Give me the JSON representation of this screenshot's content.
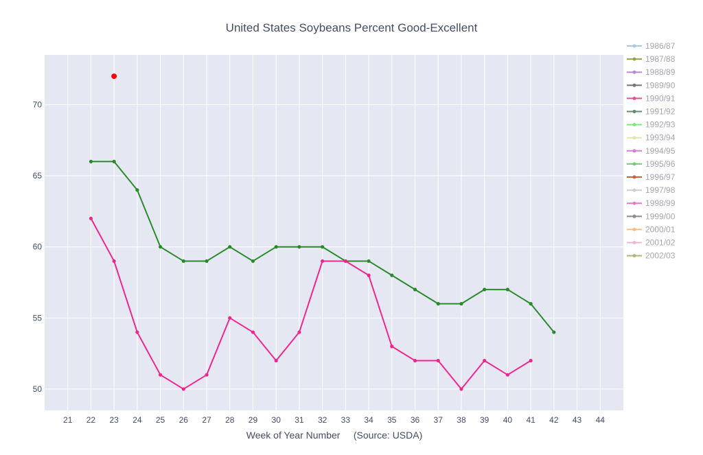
{
  "chart_data": {
    "type": "line",
    "title": "United States Soybeans Percent Good-Excellent",
    "xlabel": "Week of Year Number     (Source: USDA)",
    "ylabel": "",
    "xlim": [
      20,
      45
    ],
    "ylim": [
      48.5,
      73.5
    ],
    "x_ticks": [
      21,
      22,
      23,
      24,
      25,
      26,
      27,
      28,
      29,
      30,
      31,
      32,
      33,
      34,
      35,
      36,
      37,
      38,
      39,
      40,
      41,
      42,
      43,
      44
    ],
    "y_ticks": [
      50,
      55,
      60,
      65,
      70
    ],
    "grid": true,
    "legend_position": "right",
    "background_color": "#e5e8f3",
    "legend": [
      {
        "name": "1986/87",
        "color": "#a8c8e0"
      },
      {
        "name": "1987/88",
        "color": "#9aa04a"
      },
      {
        "name": "1988/89",
        "color": "#b48ccf"
      },
      {
        "name": "1989/90",
        "color": "#777777"
      },
      {
        "name": "1990/91",
        "color": "#e0558f"
      },
      {
        "name": "1991/92",
        "color": "#5b8f70"
      },
      {
        "name": "1992/93",
        "color": "#7fe87f"
      },
      {
        "name": "1993/94",
        "color": "#e4e4b4"
      },
      {
        "name": "1994/95",
        "color": "#d67fd6"
      },
      {
        "name": "1995/96",
        "color": "#6fd06f"
      },
      {
        "name": "1996/97",
        "color": "#c8643c"
      },
      {
        "name": "1997/98",
        "color": "#cfcfcf"
      },
      {
        "name": "1998/99",
        "color": "#e679c8"
      },
      {
        "name": "1999/00",
        "color": "#8c8c8c"
      },
      {
        "name": "2000/01",
        "color": "#f0c080"
      },
      {
        "name": "2001/02",
        "color": "#e8b8cc"
      },
      {
        "name": "2002/03",
        "color": "#b4b47a"
      }
    ],
    "series": [
      {
        "color": "#2a8a2a",
        "x": [
          22,
          23,
          24,
          25,
          26,
          27,
          28,
          29,
          30,
          31,
          32,
          33,
          34,
          35,
          36,
          37,
          38,
          39,
          40,
          41,
          42
        ],
        "y": [
          66,
          66,
          64,
          60,
          59,
          59,
          60,
          59,
          60,
          60,
          60,
          59,
          59,
          58,
          57,
          56,
          56,
          57,
          57,
          56,
          54
        ]
      },
      {
        "color": "#f0268c",
        "x": [
          22,
          23,
          24,
          25,
          26,
          27,
          28,
          29,
          30,
          31,
          32,
          33,
          34,
          35,
          36,
          37,
          38,
          39,
          40,
          41
        ],
        "y": [
          62,
          59,
          54,
          51,
          50,
          51,
          55,
          54,
          52,
          54,
          59,
          59,
          58,
          53,
          52,
          52,
          50,
          52,
          51,
          52
        ]
      },
      {
        "color": "#ff0000",
        "marker_only": true,
        "x": [
          23
        ],
        "y": [
          72
        ]
      }
    ]
  }
}
